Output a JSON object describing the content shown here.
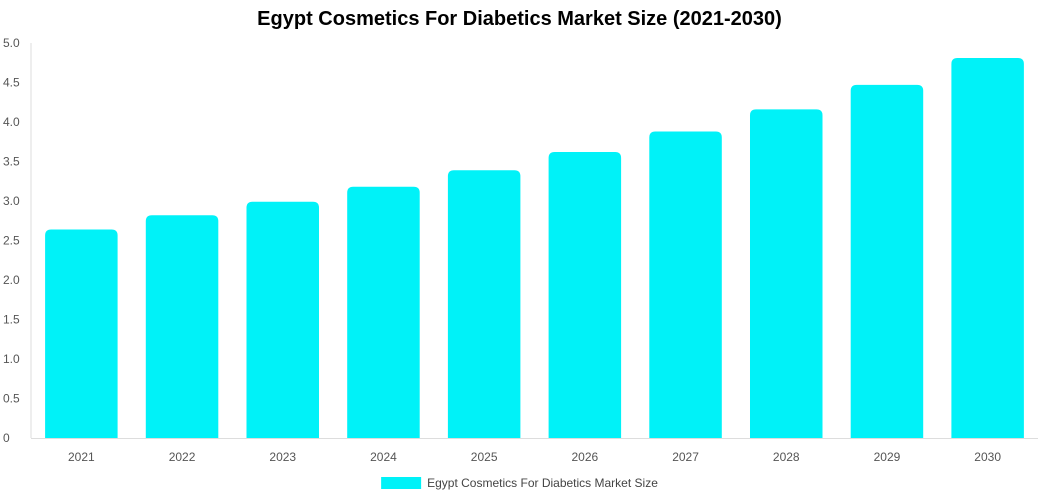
{
  "chart_data": {
    "type": "bar",
    "title": "Egypt Cosmetics For Diabetics Market Size (2021-2030)",
    "xlabel": "",
    "ylabel": "",
    "categories": [
      "2021",
      "2022",
      "2023",
      "2024",
      "2025",
      "2026",
      "2027",
      "2028",
      "2029",
      "2030"
    ],
    "series": [
      {
        "name": "Egypt Cosmetics For Diabetics Market Size",
        "values": [
          2.64,
          2.82,
          2.99,
          3.18,
          3.39,
          3.62,
          3.88,
          4.16,
          4.47,
          4.81
        ],
        "color": "#00F2F8"
      }
    ],
    "ylim": [
      0,
      5.0
    ],
    "yticks": [
      "0",
      "0.5",
      "1.0",
      "1.5",
      "2.0",
      "2.5",
      "3.0",
      "3.5",
      "4.0",
      "4.5",
      "5.0"
    ],
    "grid": false,
    "legend_position": "bottom"
  }
}
